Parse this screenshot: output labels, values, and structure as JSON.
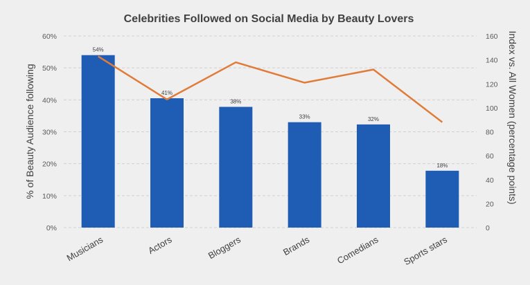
{
  "chart_data": {
    "type": "bar",
    "title": "Celebrities Followed on Social Media by Beauty Lovers",
    "categories": [
      "Musicians",
      "Actors",
      "Bloggers",
      "Brands",
      "Comedians",
      "Sports stars"
    ],
    "ylabel": "% of Beauty Audience following",
    "y2label": "Index vs. All Women (percentage points)",
    "ylim": [
      0,
      60
    ],
    "y2lim": [
      0,
      160
    ],
    "yticks": [
      "0%",
      "10%",
      "20%",
      "30%",
      "40%",
      "50%",
      "60%"
    ],
    "y2ticks": [
      "0",
      "20",
      "40",
      "60",
      "80",
      "100",
      "120",
      "140",
      "160"
    ],
    "grid": true,
    "series": [
      {
        "type": "bar",
        "axis": "left",
        "values": [
          54,
          40.5,
          37.8,
          33,
          32.3,
          17.8
        ],
        "labels": [
          "54%",
          "41%",
          "38%",
          "33%",
          "32%",
          "18%"
        ],
        "color": "#1f5db5"
      },
      {
        "type": "line",
        "axis": "right",
        "values": [
          143,
          107,
          138,
          121,
          132,
          88
        ],
        "color": "#e07b39"
      }
    ]
  }
}
